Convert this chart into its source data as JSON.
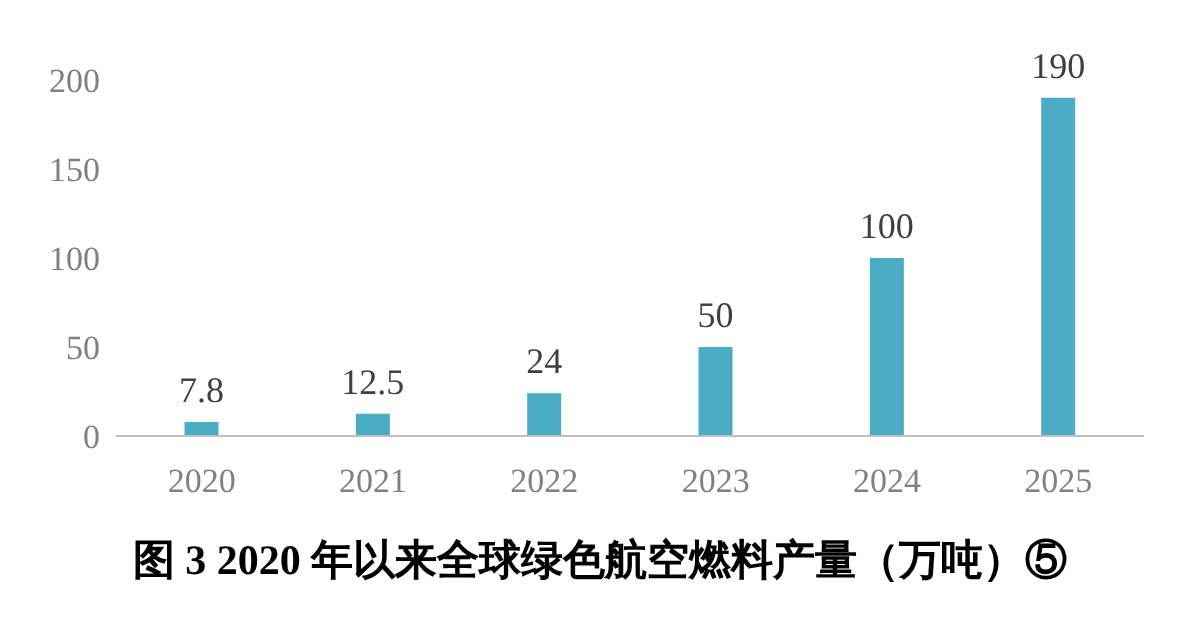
{
  "chart_data": {
    "type": "bar",
    "title": "图 3 2020 年以来全球绿色航空燃料产量（万吨）⑤",
    "categories": [
      "2020",
      "2021",
      "2022",
      "2023",
      "2024",
      "2025"
    ],
    "values": [
      7.8,
      12.5,
      24,
      50,
      100,
      190
    ],
    "color": "#4bacc6",
    "ylim": [
      0,
      200
    ],
    "yticks": [
      0,
      50,
      100,
      150,
      200
    ],
    "grid": false,
    "data_labels": true
  }
}
